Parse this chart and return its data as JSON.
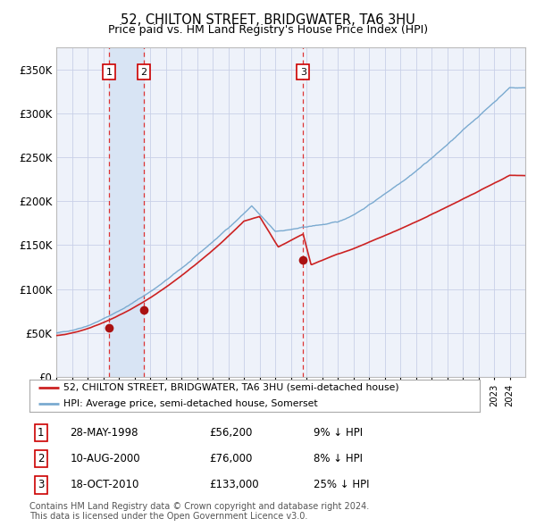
{
  "title": "52, CHILTON STREET, BRIDGWATER, TA6 3HU",
  "subtitle": "Price paid vs. HM Land Registry's House Price Index (HPI)",
  "title_fontsize": 10.5,
  "subtitle_fontsize": 9,
  "ylim": [
    0,
    375000
  ],
  "yticks": [
    0,
    50000,
    100000,
    150000,
    200000,
    250000,
    300000,
    350000
  ],
  "ytick_labels": [
    "£0",
    "£50K",
    "£100K",
    "£150K",
    "£200K",
    "£250K",
    "£300K",
    "£350K"
  ],
  "background_color": "#ffffff",
  "plot_bg_color": "#eef2fa",
  "grid_color": "#c8d0e8",
  "hpi_color": "#7aaad0",
  "price_color": "#cc2222",
  "sale_marker_color": "#aa1111",
  "vline_color": "#dd3333",
  "shaded_color": "#d8e4f4",
  "legend_label_price": "52, CHILTON STREET, BRIDGWATER, TA6 3HU (semi-detached house)",
  "legend_label_hpi": "HPI: Average price, semi-detached house, Somerset",
  "transactions": [
    {
      "date_num": 1998.38,
      "price": 56200,
      "label": "1",
      "date_str": "28-MAY-1998",
      "pct": "9% ↓ HPI"
    },
    {
      "date_num": 2000.61,
      "price": 76000,
      "label": "2",
      "date_str": "10-AUG-2000",
      "pct": "8% ↓ HPI"
    },
    {
      "date_num": 2010.79,
      "price": 133000,
      "label": "3",
      "date_str": "18-OCT-2010",
      "pct": "25% ↓ HPI"
    }
  ],
  "footnote": "Contains HM Land Registry data © Crown copyright and database right 2024.\nThis data is licensed under the Open Government Licence v3.0.",
  "footnote_fontsize": 7
}
